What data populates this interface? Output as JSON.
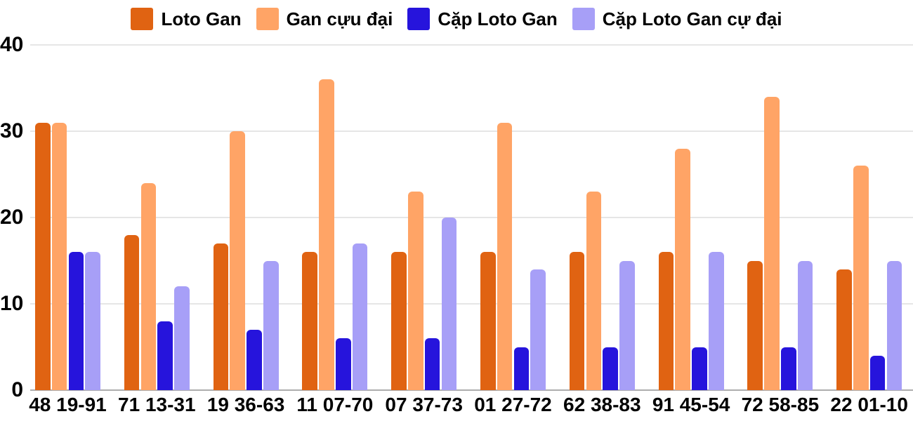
{
  "chart_data": {
    "type": "bar",
    "title": "",
    "categories": [
      "48 19-91",
      "71 13-31",
      "19 36-63",
      "11 07-70",
      "07 37-73",
      "01 27-72",
      "62 38-83",
      "91 45-54",
      "72 58-85",
      "22 01-10"
    ],
    "series": [
      {
        "name": "Loto Gan",
        "color": "#E06312",
        "values": [
          31,
          18,
          17,
          16,
          16,
          16,
          16,
          16,
          15,
          14
        ]
      },
      {
        "name": "Gan cựu đại",
        "color": "#FFA466",
        "values": [
          31,
          24,
          30,
          36,
          23,
          31,
          23,
          28,
          34,
          26
        ]
      },
      {
        "name": "Cặp Loto Gan",
        "color": "#2614DC",
        "values": [
          16,
          8,
          7,
          6,
          6,
          5,
          5,
          5,
          5,
          4
        ]
      },
      {
        "name": "Cặp Loto Gan cự đại",
        "color": "#A79FF7",
        "values": [
          16,
          12,
          15,
          17,
          20,
          14,
          15,
          16,
          15,
          15
        ]
      }
    ],
    "xlabel": "",
    "ylabel": "",
    "ylim": [
      0,
      40
    ],
    "yticks": [
      0,
      10,
      20,
      30,
      40
    ],
    "grid": true,
    "legend_position": "top",
    "colors": {
      "gridline": "#E6E6E6",
      "axis_line": "#ADADAD",
      "text": "#000000",
      "background": "#FFFFFF"
    }
  }
}
